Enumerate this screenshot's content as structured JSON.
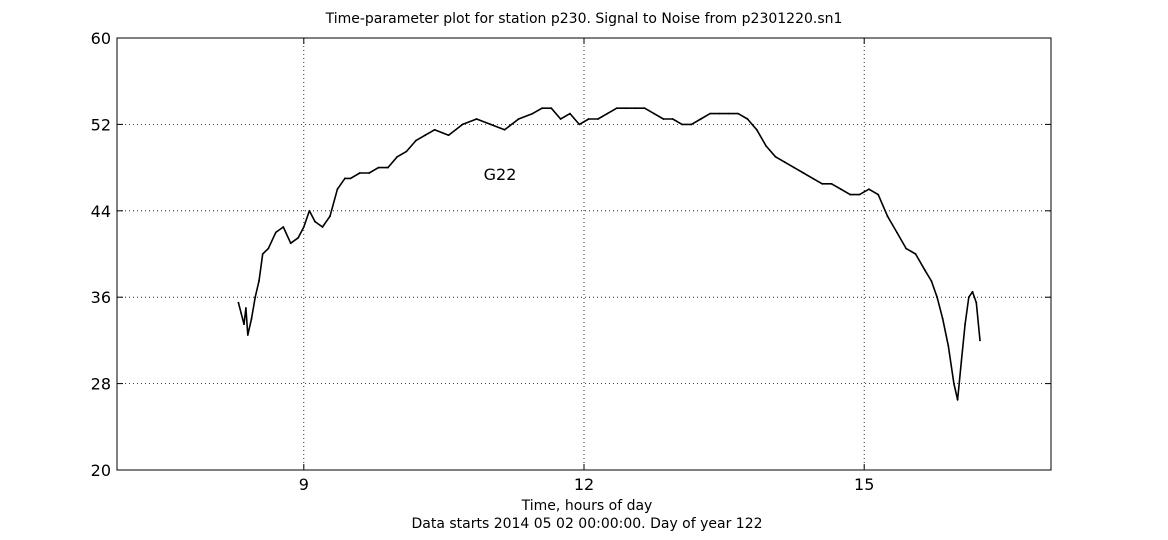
{
  "chart_data": {
    "type": "line",
    "title": "Time-parameter plot for station p230.   Signal to Noise from p2301220.sn1",
    "xlabel": "Time, hours of day",
    "xlabel2": "Data starts 2014 05 02 00:00:00.  Day of year 122",
    "ylabel": "",
    "xlim": [
      7,
      17
    ],
    "ylim": [
      20,
      60
    ],
    "xticks": [
      9,
      12,
      15
    ],
    "yticks": [
      20,
      28,
      36,
      44,
      52,
      60
    ],
    "grid": true,
    "line_color": "#000000",
    "annotation": "G22",
    "series": [
      {
        "x": [
          8.3,
          8.33,
          8.36,
          8.38,
          8.4,
          8.44,
          8.48,
          8.52,
          8.56,
          8.62,
          8.7,
          8.78,
          8.86,
          8.94,
          9.0,
          9.06,
          9.12,
          9.2,
          9.28,
          9.36,
          9.44,
          9.5,
          9.6,
          9.7,
          9.8,
          9.9,
          10.0,
          10.1,
          10.2,
          10.3,
          10.4,
          10.55,
          10.7,
          10.85,
          11.0,
          11.15,
          11.3,
          11.45,
          11.55,
          11.65,
          11.75,
          11.85,
          11.95,
          12.05,
          12.15,
          12.25,
          12.35,
          12.45,
          12.55,
          12.65,
          12.75,
          12.85,
          12.95,
          13.05,
          13.15,
          13.25,
          13.35,
          13.45,
          13.55,
          13.65,
          13.75,
          13.85,
          13.95,
          14.05,
          14.15,
          14.25,
          14.35,
          14.45,
          14.55,
          14.65,
          14.75,
          14.85,
          14.95,
          15.05,
          15.15,
          15.25,
          15.35,
          15.45,
          15.55,
          15.65,
          15.72,
          15.78,
          15.84,
          15.9,
          15.96,
          16.0,
          16.04,
          16.08,
          16.12,
          16.16,
          16.2,
          16.24
        ],
        "y": [
          35.5,
          34.5,
          33.5,
          35.0,
          32.5,
          34.0,
          36.0,
          37.5,
          40.0,
          40.5,
          42.0,
          42.5,
          41.0,
          41.5,
          42.5,
          44.0,
          43.0,
          42.5,
          43.5,
          46.0,
          47.0,
          47.0,
          47.5,
          47.5,
          48.0,
          48.0,
          49.0,
          49.5,
          50.5,
          51.0,
          51.5,
          51.0,
          52.0,
          52.5,
          52.0,
          51.5,
          52.5,
          53.0,
          53.5,
          53.5,
          52.5,
          53.0,
          52.0,
          52.5,
          52.5,
          53.0,
          53.5,
          53.5,
          53.5,
          53.5,
          53.0,
          52.5,
          52.5,
          52.0,
          52.0,
          52.5,
          53.0,
          53.0,
          53.0,
          53.0,
          52.5,
          51.5,
          50.0,
          49.0,
          48.5,
          48.0,
          47.5,
          47.0,
          46.5,
          46.5,
          46.0,
          45.5,
          45.5,
          46.0,
          45.5,
          43.5,
          42.0,
          40.5,
          40.0,
          38.5,
          37.5,
          36.0,
          34.0,
          31.5,
          28.0,
          26.5,
          30.0,
          33.5,
          36.0,
          36.5,
          35.5,
          32.0
        ]
      }
    ]
  }
}
